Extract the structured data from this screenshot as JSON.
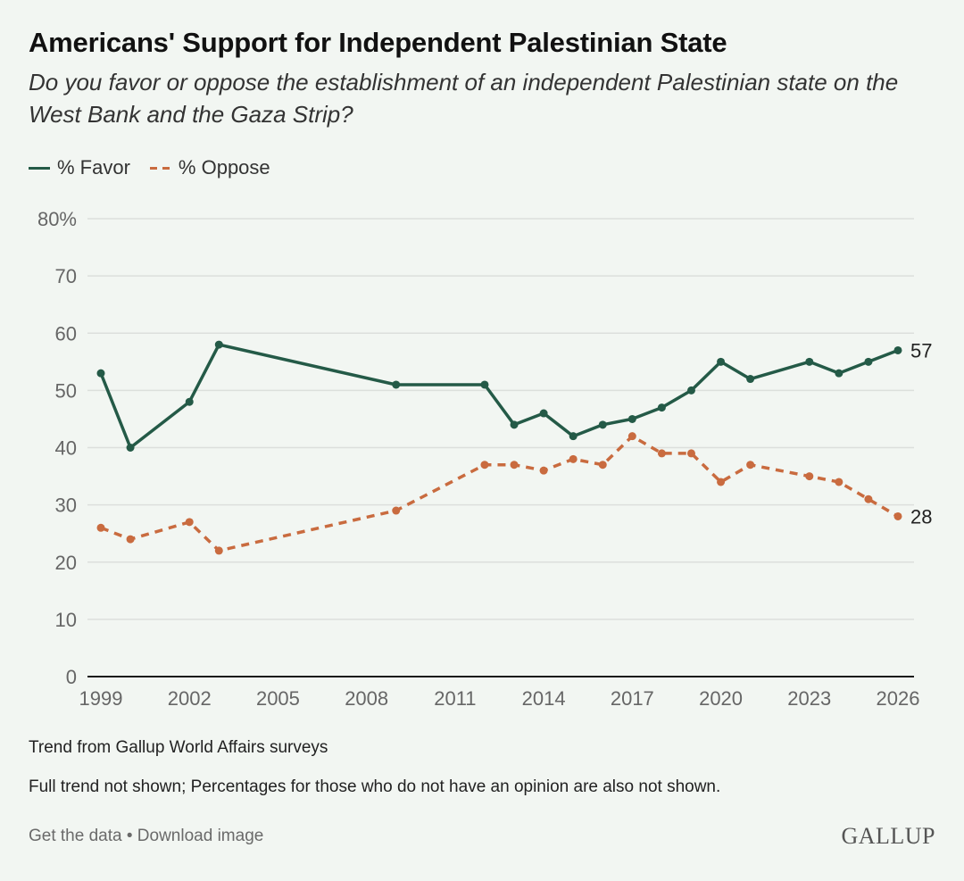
{
  "header": {
    "title": "Americans' Support for Independent Palestinian State",
    "subtitle": "Do you favor or oppose the establishment of an independent Palestinian state on the West Bank and the Gaza Strip?"
  },
  "legend": {
    "favor_label": "% Favor",
    "oppose_label": "% Oppose"
  },
  "colors": {
    "favor": "#245a47",
    "oppose": "#c96b3f",
    "grid": "#dcdfdc",
    "axis": "#1b1b1b"
  },
  "chart_data": {
    "type": "line",
    "title": "Americans' Support for Independent Palestinian State",
    "xlabel": "",
    "ylabel": "",
    "xlim": [
      1999,
      2026
    ],
    "ylim": [
      0,
      80
    ],
    "yticks": [
      0,
      10,
      20,
      30,
      40,
      50,
      60,
      70,
      80
    ],
    "ytick_labels": [
      "0",
      "10",
      "20",
      "30",
      "40",
      "50",
      "60",
      "70",
      "80%"
    ],
    "xticks": [
      1999,
      2002,
      2005,
      2008,
      2011,
      2014,
      2017,
      2020,
      2023,
      2026
    ],
    "xtick_labels": [
      "1999",
      "2002",
      "2005",
      "2008",
      "2011",
      "2014",
      "2017",
      "2020",
      "2023",
      "2026"
    ],
    "grid": true,
    "legend_position": "top-left",
    "series": [
      {
        "name": "% Favor",
        "style": "solid",
        "x": [
          1999,
          2000,
          2002,
          2003,
          2009,
          2012,
          2013,
          2014,
          2015,
          2016,
          2017,
          2018,
          2019,
          2020,
          2021,
          2023,
          2024,
          2025,
          2026
        ],
        "values": [
          53,
          40,
          48,
          58,
          51,
          51,
          44,
          46,
          42,
          44,
          45,
          47,
          50,
          55,
          52,
          55,
          53,
          55,
          57
        ],
        "end_label": "57"
      },
      {
        "name": "% Oppose",
        "style": "dashed",
        "x": [
          1999,
          2000,
          2002,
          2003,
          2009,
          2012,
          2013,
          2014,
          2015,
          2016,
          2017,
          2018,
          2019,
          2020,
          2021,
          2023,
          2024,
          2025,
          2026
        ],
        "values": [
          26,
          24,
          27,
          22,
          29,
          37,
          37,
          36,
          38,
          37,
          42,
          39,
          39,
          34,
          37,
          35,
          34,
          31,
          28
        ],
        "end_label": "28"
      }
    ]
  },
  "footer": {
    "source": "Trend from Gallup World Affairs surveys",
    "note": "Full trend not shown; Percentages for those who do not have an opinion are also not shown.",
    "get_data": "Get the data",
    "separator": "•",
    "download": "Download image",
    "logo": "GALLUP"
  }
}
